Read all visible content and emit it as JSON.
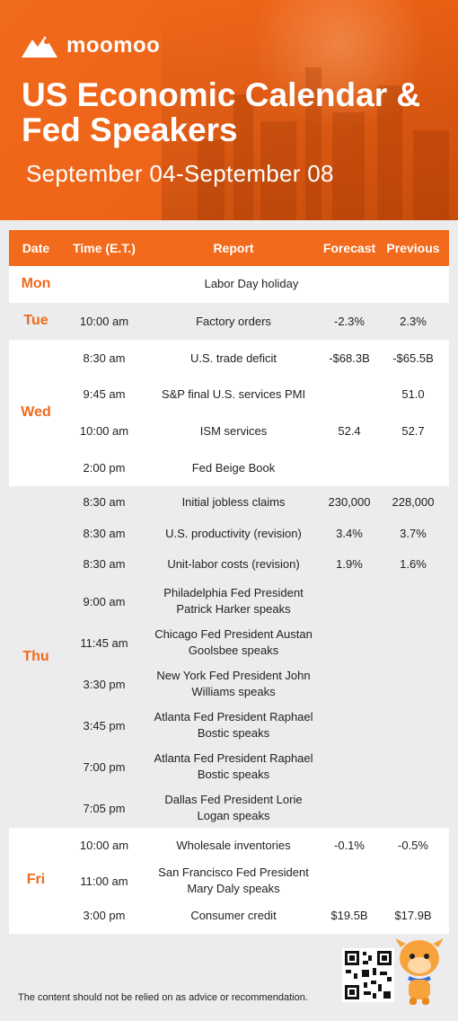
{
  "brand": {
    "name": "moomoo"
  },
  "header": {
    "title": "US Economic Calendar & Fed Speakers",
    "date_range": "September 04-September 08"
  },
  "table": {
    "columns": [
      "Date",
      "Time (E.T.)",
      "Report",
      "Forecast",
      "Previous"
    ],
    "days": [
      {
        "day": "Mon",
        "rows": [
          {
            "time": "",
            "report": "Labor Day holiday",
            "forecast": "",
            "previous": ""
          }
        ]
      },
      {
        "day": "Tue",
        "rows": [
          {
            "time": "10:00 am",
            "report": "Factory orders",
            "forecast": "-2.3%",
            "previous": "2.3%"
          }
        ]
      },
      {
        "day": "Wed",
        "rows": [
          {
            "time": "8:30 am",
            "report": "U.S. trade deficit",
            "forecast": "-$68.3B",
            "previous": "-$65.5B"
          },
          {
            "time": "9:45 am",
            "report": "S&P final U.S. services PMI",
            "forecast": "",
            "previous": "51.0"
          },
          {
            "time": "10:00 am",
            "report": "ISM services",
            "forecast": "52.4",
            "previous": "52.7"
          },
          {
            "time": "2:00 pm",
            "report": "Fed Beige Book",
            "forecast": "",
            "previous": ""
          }
        ]
      },
      {
        "day": "Thu",
        "rows": [
          {
            "time": "8:30 am",
            "report": "Initial jobless claims",
            "forecast": "230,000",
            "previous": "228,000"
          },
          {
            "time": "8:30 am",
            "report": "U.S. productivity (revision)",
            "forecast": "3.4%",
            "previous": "3.7%"
          },
          {
            "time": "8:30 am",
            "report": "Unit-labor costs (revision)",
            "forecast": "1.9%",
            "previous": "1.6%"
          },
          {
            "time": "9:00 am",
            "report_l1": "Philadelphia Fed President",
            "report_l2": "Patrick Harker speaks",
            "forecast": "",
            "previous": ""
          },
          {
            "time": "11:45 am",
            "report_l1": "Chicago Fed President Austan",
            "report_l2": "Goolsbee speaks",
            "forecast": "",
            "previous": ""
          },
          {
            "time": "3:30 pm",
            "report_l1": "New York Fed President John",
            "report_l2": "Williams speaks",
            "forecast": "",
            "previous": ""
          },
          {
            "time": "3:45 pm",
            "report_l1": "Atlanta Fed President Raphael",
            "report_l2": "Bostic speaks",
            "forecast": "",
            "previous": ""
          },
          {
            "time": "7:00 pm",
            "report_l1": "Atlanta Fed President Raphael",
            "report_l2": "Bostic speaks",
            "forecast": "",
            "previous": ""
          },
          {
            "time": "7:05 pm",
            "report_l1": "Dallas Fed President Lorie",
            "report_l2": "Logan speaks",
            "forecast": "",
            "previous": ""
          }
        ]
      },
      {
        "day": "Fri",
        "rows": [
          {
            "time": "10:00 am",
            "report": "Wholesale inventories",
            "forecast": "-0.1%",
            "previous": "-0.5%"
          },
          {
            "time": "11:00 am",
            "report_l1": "San Francisco Fed President",
            "report_l2": "Mary Daly speaks",
            "forecast": "",
            "previous": ""
          },
          {
            "time": "3:00 pm",
            "report": "Consumer credit",
            "forecast": "$19.5B",
            "previous": "$17.9B"
          }
        ]
      }
    ]
  },
  "footer": {
    "disclaimer": "The content should not be relied on as advice or recommendation."
  },
  "colors": {
    "accent": "#f26a1b",
    "row_alt": "#ececef"
  }
}
